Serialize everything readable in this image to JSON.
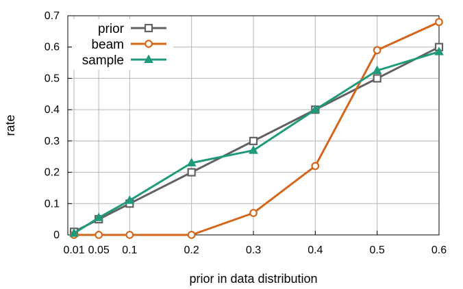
{
  "chart_data": {
    "type": "line",
    "xlabel": "prior in data distribution",
    "ylabel": "rate",
    "xlim": [
      0.0,
      0.6
    ],
    "ylim": [
      0,
      0.7
    ],
    "grid": true,
    "legend_position": "top-left",
    "x_ticks": [
      0.01,
      0.05,
      0.1,
      0.2,
      0.3,
      0.4,
      0.5,
      0.6
    ],
    "x_tick_labels": [
      "0.01",
      "0.05",
      "0.1",
      "0.2",
      "0.3",
      "0.4",
      "0.5",
      "0.6"
    ],
    "y_ticks": [
      0,
      0.1,
      0.2,
      0.3,
      0.4,
      0.5,
      0.6,
      0.7
    ],
    "y_tick_labels": [
      "0",
      "0.1",
      "0.2",
      "0.3",
      "0.4",
      "0.5",
      "0.6",
      "0.7"
    ],
    "x": [
      0.01,
      0.05,
      0.1,
      0.2,
      0.3,
      0.4,
      0.5,
      0.6
    ],
    "series": [
      {
        "name": "prior",
        "color": "#616161",
        "marker": "square",
        "values": [
          0.01,
          0.05,
          0.1,
          0.2,
          0.3,
          0.4,
          0.5,
          0.6
        ]
      },
      {
        "name": "beam",
        "color": "#d3661a",
        "marker": "circle",
        "values": [
          0,
          0,
          0,
          0,
          0.07,
          0.22,
          0.59,
          0.68
        ]
      },
      {
        "name": "sample",
        "color": "#1f9a7a",
        "marker": "triangle",
        "values": [
          0.005,
          0.055,
          0.11,
          0.23,
          0.27,
          0.4,
          0.525,
          0.585
        ]
      }
    ]
  }
}
